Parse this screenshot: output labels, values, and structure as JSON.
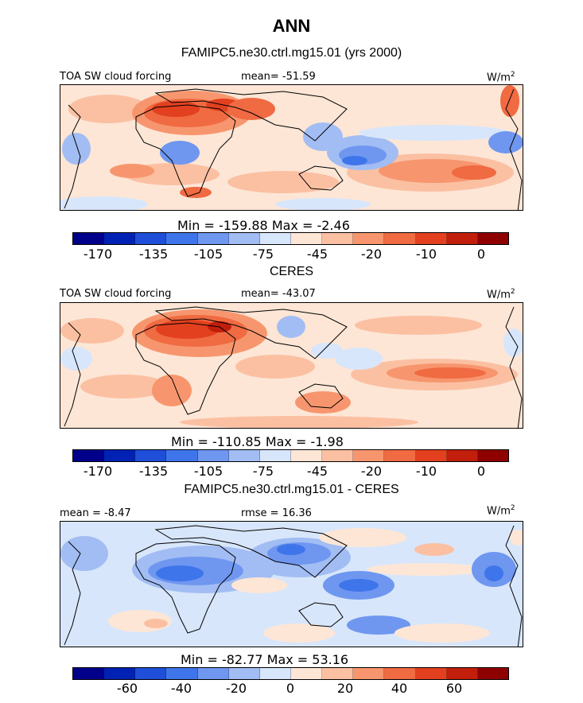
{
  "title": "ANN",
  "palette": [
    "#00008b",
    "#0022b4",
    "#1f4fd8",
    "#3f75ea",
    "#6f97f0",
    "#a2bdf3",
    "#d8e6fb",
    "#fde6d6",
    "#fbc0a2",
    "#f7966e",
    "#f06a42",
    "#e2401f",
    "#c11f0c",
    "#8f0000"
  ],
  "chart_data": [
    {
      "type": "heatmap",
      "title": "FAMIPC5.ne30.ctrl.mg15.01 (yrs 2000)",
      "field_label": "TOA SW cloud forcing",
      "mean_text": "mean= -51.59",
      "units": "W/m",
      "units_sup": "2",
      "min": -159.88,
      "max": -2.46,
      "minmax_text": "Min = -159.88 Max =  -2.46",
      "contour_levels": [
        "-170",
        "-135",
        "-105",
        "-75",
        "-45",
        "-20",
        "-10",
        "0"
      ]
    },
    {
      "type": "heatmap",
      "title": "CERES",
      "field_label": "TOA SW cloud forcing",
      "mean_text": "mean= -43.07",
      "units": "W/m",
      "units_sup": "2",
      "min": -110.85,
      "max": -1.98,
      "minmax_text": "Min = -110.85 Max =  -1.98",
      "contour_levels": [
        "-170",
        "-135",
        "-105",
        "-75",
        "-45",
        "-20",
        "-10",
        "0"
      ]
    },
    {
      "type": "heatmap",
      "title": "FAMIPC5.ne30.ctrl.mg15.01 - CERES",
      "mean_text": "mean =  -8.47",
      "rmse_text": "rmse =  16.36",
      "units": "W/m",
      "units_sup": "2",
      "min": -82.77,
      "max": 53.16,
      "minmax_text": "Min = -82.77 Max =  53.16",
      "contour_levels": [
        "-60",
        "-40",
        "-20",
        "0",
        "20",
        "40",
        "60"
      ]
    }
  ]
}
